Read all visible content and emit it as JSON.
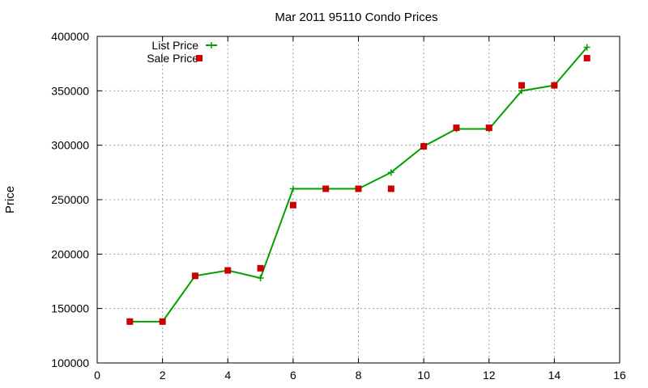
{
  "chart_data": {
    "type": "line",
    "title": "Mar 2011 95110 Condo Prices",
    "xlabel": "",
    "ylabel": "Price",
    "xlim": [
      0,
      16
    ],
    "ylim": [
      100000,
      400000
    ],
    "x_ticks": [
      0,
      2,
      4,
      6,
      8,
      10,
      12,
      14,
      16
    ],
    "y_ticks": [
      100000,
      150000,
      200000,
      250000,
      300000,
      350000,
      400000
    ],
    "grid": true,
    "legend_position": "top-left",
    "series": [
      {
        "name": "List Price",
        "style": "line+points",
        "marker": "plus",
        "color": "#00a000",
        "x": [
          1,
          2,
          3,
          4,
          5,
          6,
          7,
          8,
          9,
          10,
          11,
          12,
          13,
          14,
          15
        ],
        "y": [
          138000,
          138000,
          180000,
          185000,
          178000,
          260000,
          260000,
          260000,
          275000,
          299000,
          315000,
          315000,
          350000,
          355000,
          390000
        ]
      },
      {
        "name": "Sale Price",
        "style": "points",
        "marker": "square",
        "color": "#cc0000",
        "x": [
          1,
          2,
          3,
          4,
          5,
          6,
          7,
          8,
          9,
          10,
          11,
          12,
          13,
          14,
          15
        ],
        "y": [
          138000,
          138000,
          180000,
          185000,
          187000,
          245000,
          260000,
          260000,
          260000,
          299000,
          316000,
          316000,
          355000,
          355000,
          380000
        ]
      }
    ]
  }
}
